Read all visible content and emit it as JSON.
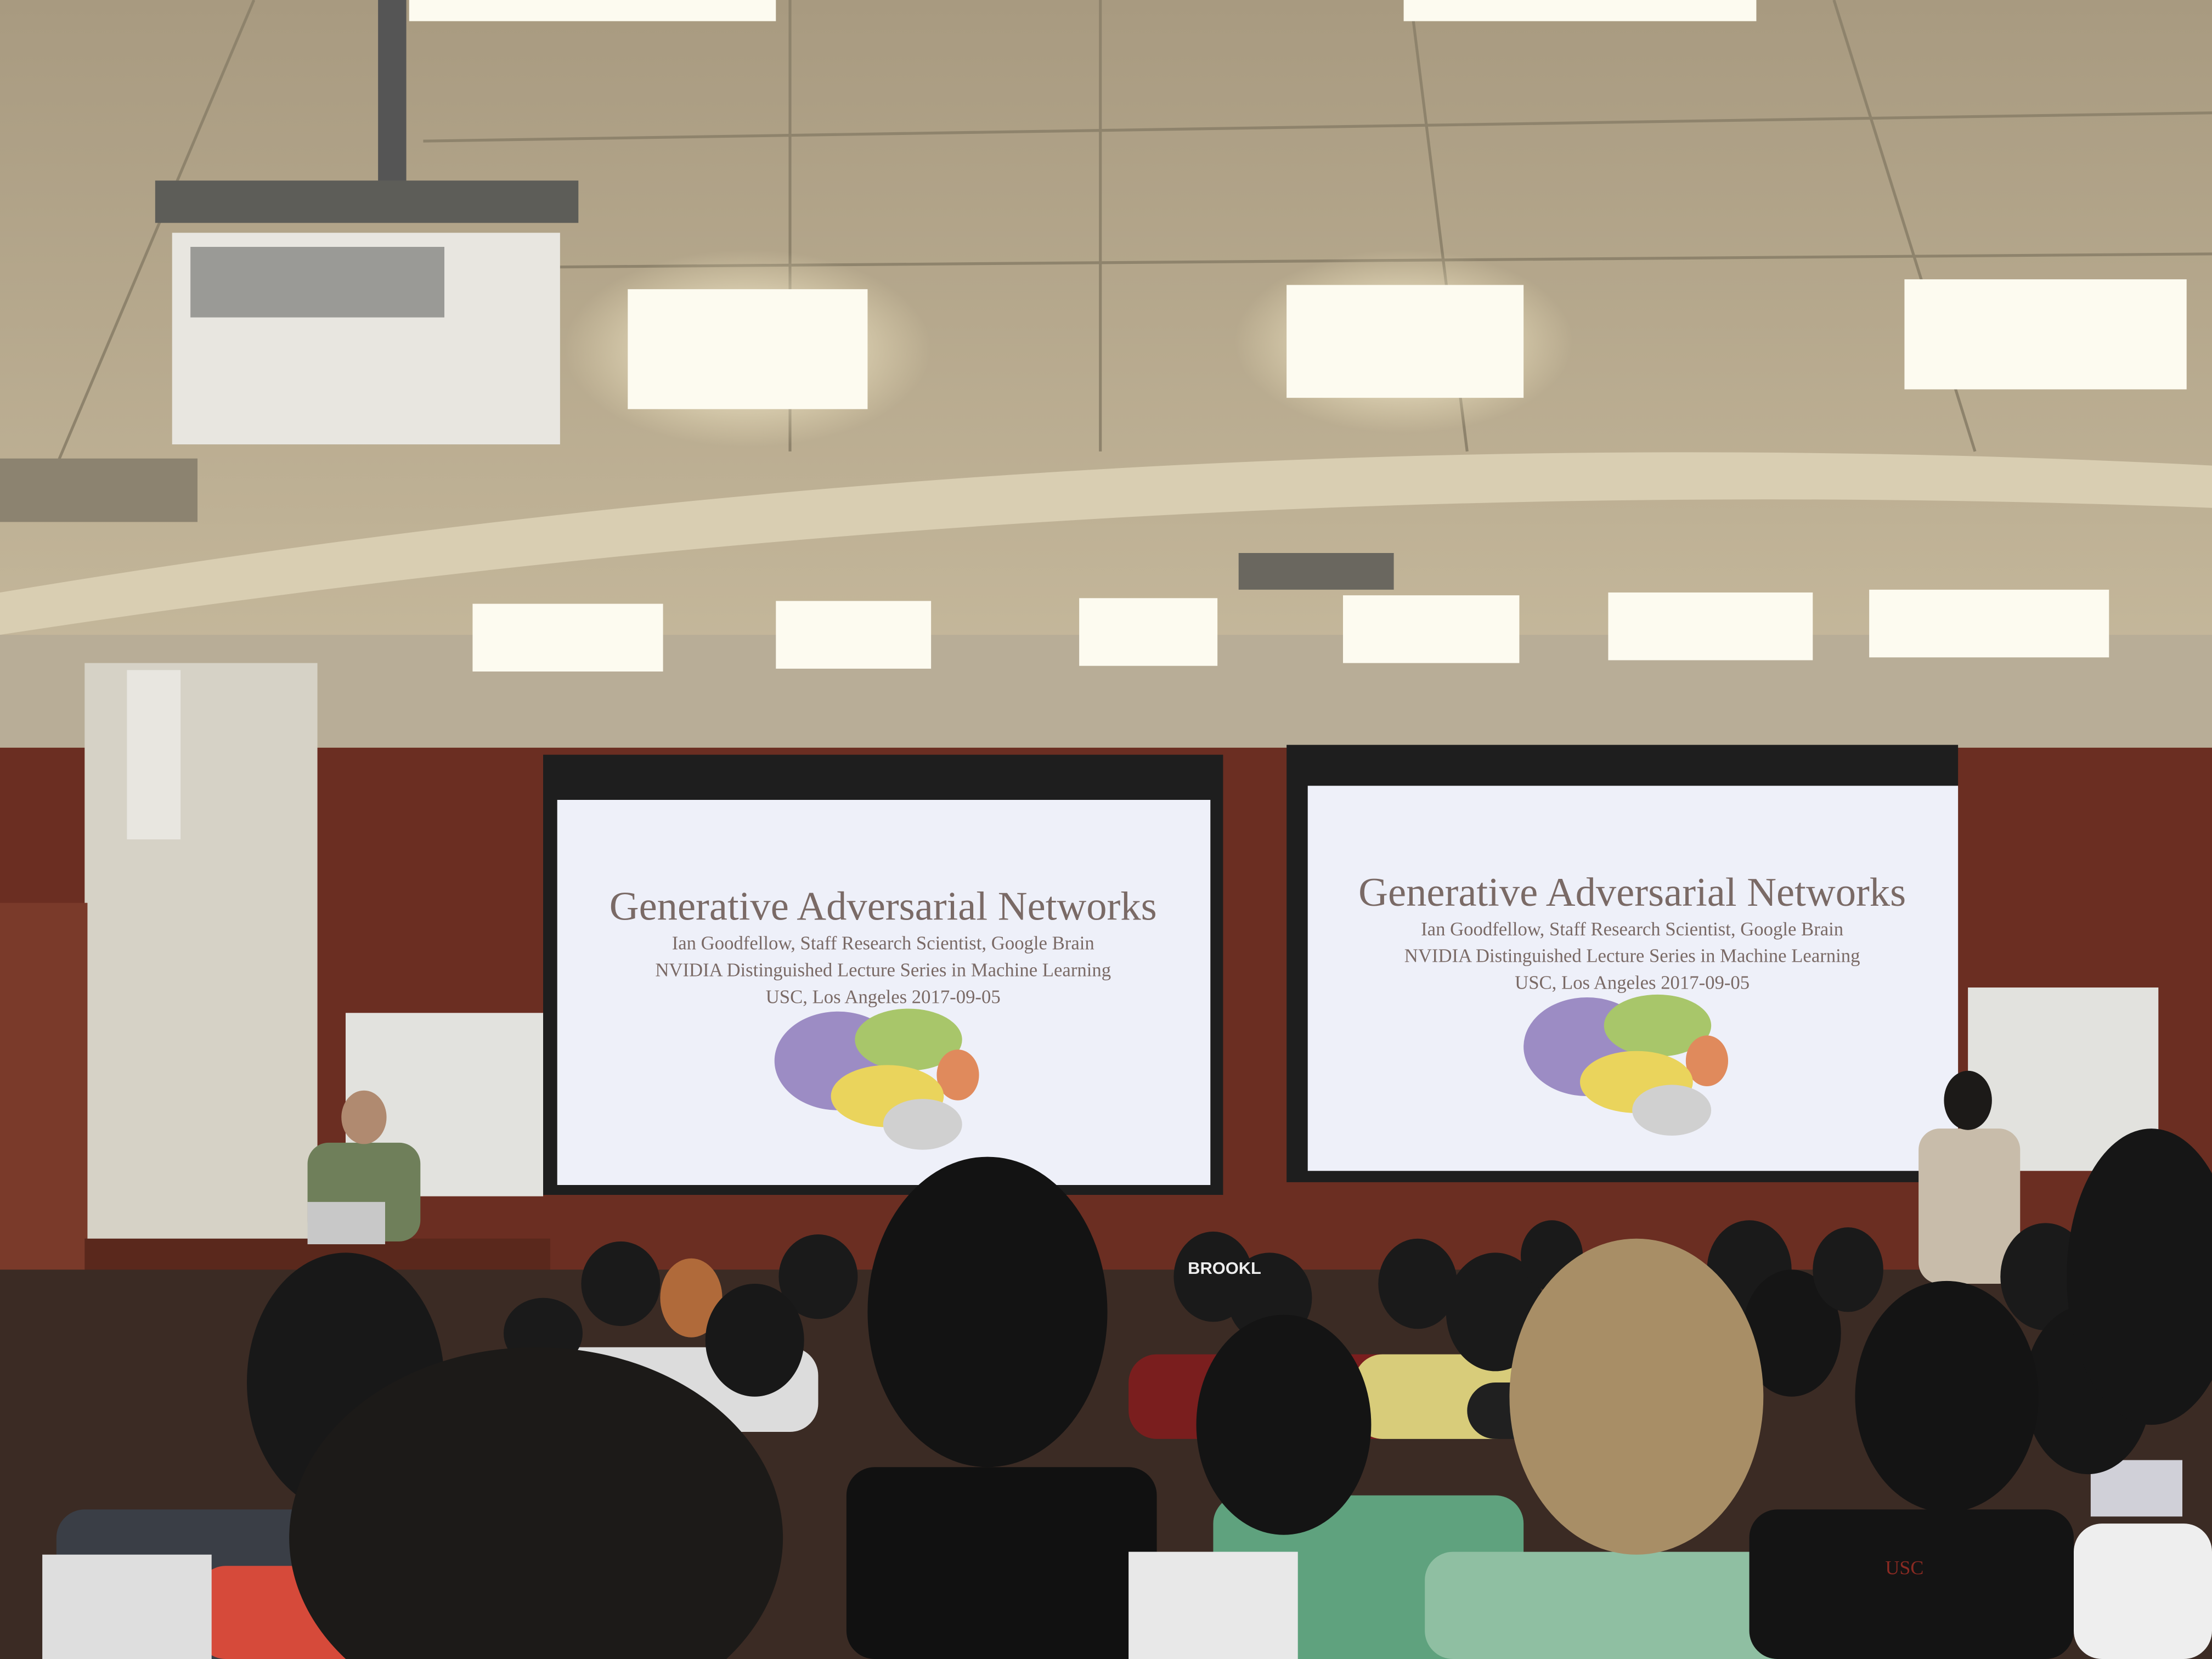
{
  "screens": [
    {
      "title": "Generative Adversarial Networks",
      "lines": [
        "Ian Goodfellow, Staff Research Scientist, Google Brain",
        "NVIDIA Distinguished Lecture Series in Machine Learning",
        "USC, Los Angeles 2017-09-05"
      ]
    },
    {
      "title": "Generative Adversarial Networks",
      "lines": [
        "Ian Goodfellow, Staff Research Scientist, Google Brain",
        "NVIDIA Distinguished Lecture Series in Machine Learning",
        "USC, Los Angeles 2017-09-05"
      ]
    }
  ],
  "audience": {
    "cap_text": "BROOKL",
    "shirt_text": "USC"
  }
}
